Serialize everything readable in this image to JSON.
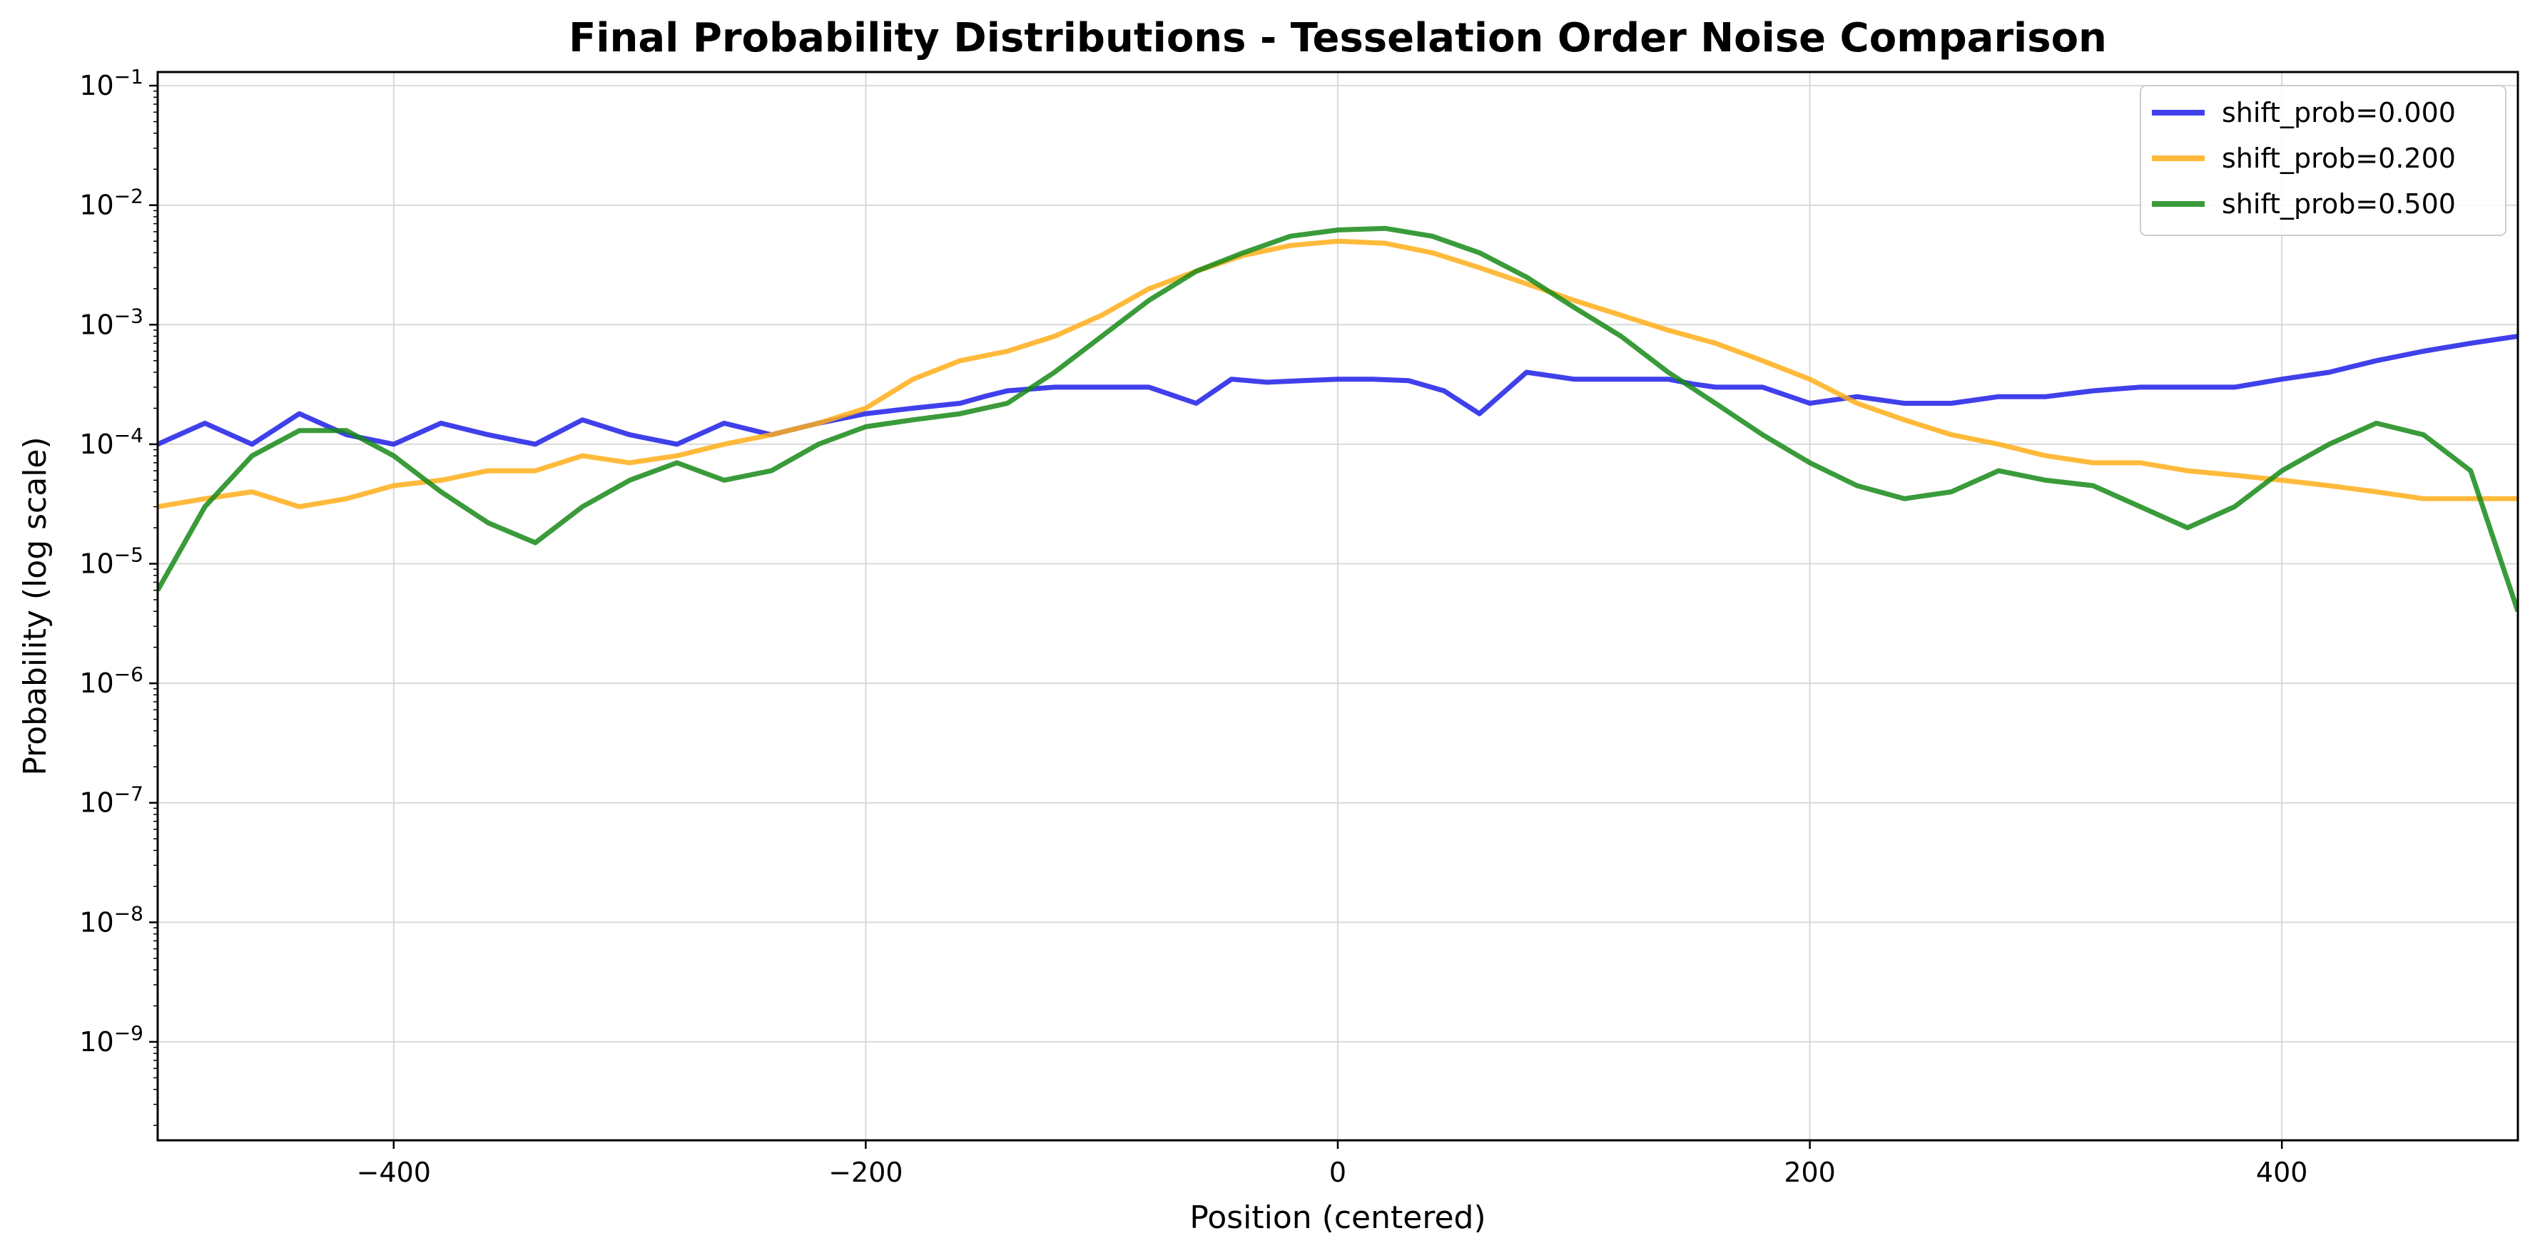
{
  "chart_data": {
    "type": "line",
    "title": "Final Probability Distributions - Tesselation Order Noise Comparison",
    "xlabel": "Position (centered)",
    "ylabel": "Probability (log scale)",
    "xlim": [
      -500,
      500
    ],
    "ylim": [
      1.5e-10,
      0.13
    ],
    "yscale": "log",
    "grid": true,
    "legend_position": "upper right",
    "x_ticks": [
      -400,
      -200,
      0,
      200,
      400
    ],
    "x_tick_labels": [
      "−400",
      "−200",
      "0",
      "200",
      "400"
    ],
    "y_ticks": [
      {
        "exp": -9,
        "label": "10",
        "sup": "−9"
      },
      {
        "exp": -8,
        "label": "10",
        "sup": "−8"
      },
      {
        "exp": -7,
        "label": "10",
        "sup": "−7"
      },
      {
        "exp": -6,
        "label": "10",
        "sup": "−6"
      },
      {
        "exp": -5,
        "label": "10",
        "sup": "−5"
      },
      {
        "exp": -4,
        "label": "10",
        "sup": "−4"
      },
      {
        "exp": -3,
        "label": "10",
        "sup": "−3"
      },
      {
        "exp": -2,
        "label": "10",
        "sup": "−2"
      },
      {
        "exp": -1,
        "label": "10",
        "sup": "−1"
      }
    ],
    "series": [
      {
        "name": "shift_prob=0.000",
        "color": "#1f1fe8",
        "x": [
          -500,
          -480,
          -460,
          -440,
          -420,
          -400,
          -380,
          -360,
          -340,
          -320,
          -300,
          -280,
          -260,
          -240,
          -220,
          -200,
          -180,
          -160,
          -150,
          -140,
          -120,
          -100,
          -80,
          -60,
          -45,
          -30,
          -15,
          0,
          15,
          30,
          45,
          60,
          80,
          100,
          120,
          140,
          150,
          160,
          180,
          200,
          220,
          240,
          260,
          280,
          300,
          320,
          340,
          360,
          380,
          400,
          420,
          440,
          460,
          480,
          500
        ],
        "y": [
          0.0001,
          0.00015,
          0.0001,
          0.00018,
          0.00012,
          0.0001,
          0.00015,
          0.00012,
          0.0001,
          0.00016,
          0.00012,
          0.0001,
          0.00015,
          0.00012,
          0.00015,
          0.00018,
          0.0002,
          0.00022,
          0.00025,
          0.00028,
          0.0003,
          0.0003,
          0.0003,
          0.00022,
          0.00035,
          0.00033,
          0.00034,
          0.00035,
          0.00035,
          0.00034,
          0.00028,
          0.00018,
          0.0004,
          0.00035,
          0.00035,
          0.00035,
          0.00032,
          0.0003,
          0.0003,
          0.00022,
          0.00025,
          0.00022,
          0.00022,
          0.00025,
          0.00025,
          0.00028,
          0.0003,
          0.0003,
          0.0003,
          0.00035,
          0.0004,
          0.0005,
          0.0006,
          0.0007,
          0.0008
        ]
      },
      {
        "name": "shift_prob=0.200",
        "color": "#ffae1a",
        "x": [
          -500,
          -480,
          -460,
          -440,
          -420,
          -400,
          -380,
          -360,
          -340,
          -320,
          -300,
          -280,
          -260,
          -240,
          -220,
          -200,
          -180,
          -160,
          -140,
          -120,
          -100,
          -80,
          -60,
          -40,
          -20,
          0,
          20,
          40,
          60,
          80,
          100,
          120,
          140,
          160,
          180,
          200,
          220,
          240,
          260,
          280,
          300,
          320,
          340,
          360,
          380,
          400,
          420,
          440,
          460,
          480,
          500
        ],
        "y": [
          3e-05,
          3.5e-05,
          4e-05,
          3e-05,
          3.5e-05,
          4.5e-05,
          5e-05,
          6e-05,
          6e-05,
          8e-05,
          7e-05,
          8e-05,
          0.0001,
          0.00012,
          0.00015,
          0.0002,
          0.00035,
          0.0005,
          0.0006,
          0.0008,
          0.0012,
          0.002,
          0.0028,
          0.0038,
          0.0046,
          0.005,
          0.0048,
          0.004,
          0.003,
          0.0022,
          0.0016,
          0.0012,
          0.0009,
          0.0007,
          0.0005,
          0.00035,
          0.00022,
          0.00016,
          0.00012,
          0.0001,
          8e-05,
          7e-05,
          7e-05,
          6e-05,
          5.5e-05,
          5e-05,
          4.5e-05,
          4e-05,
          3.5e-05,
          3.5e-05,
          3.5e-05
        ]
      },
      {
        "name": "shift_prob=0.500",
        "color": "#178a17",
        "x": [
          -500,
          -480,
          -460,
          -440,
          -420,
          -400,
          -380,
          -360,
          -340,
          -320,
          -300,
          -280,
          -260,
          -240,
          -220,
          -200,
          -180,
          -160,
          -140,
          -120,
          -100,
          -80,
          -60,
          -40,
          -20,
          0,
          20,
          40,
          60,
          80,
          100,
          120,
          140,
          160,
          180,
          200,
          220,
          240,
          260,
          280,
          300,
          320,
          340,
          360,
          380,
          400,
          420,
          440,
          460,
          480,
          500
        ],
        "y": [
          6e-06,
          3e-05,
          8e-05,
          0.00013,
          0.00013,
          8e-05,
          4e-05,
          2.2e-05,
          1.5e-05,
          3e-05,
          5e-05,
          7e-05,
          5e-05,
          6e-05,
          0.0001,
          0.00014,
          0.00016,
          0.00018,
          0.00022,
          0.0004,
          0.0008,
          0.0016,
          0.0028,
          0.004,
          0.0055,
          0.0062,
          0.0064,
          0.0055,
          0.004,
          0.0025,
          0.0014,
          0.0008,
          0.0004,
          0.00022,
          0.00012,
          7e-05,
          4.5e-05,
          3.5e-05,
          4e-05,
          6e-05,
          5e-05,
          4.5e-05,
          3e-05,
          2e-05,
          3e-05,
          6e-05,
          0.0001,
          0.00015,
          0.00012,
          6e-05,
          4e-06
        ]
      }
    ]
  }
}
